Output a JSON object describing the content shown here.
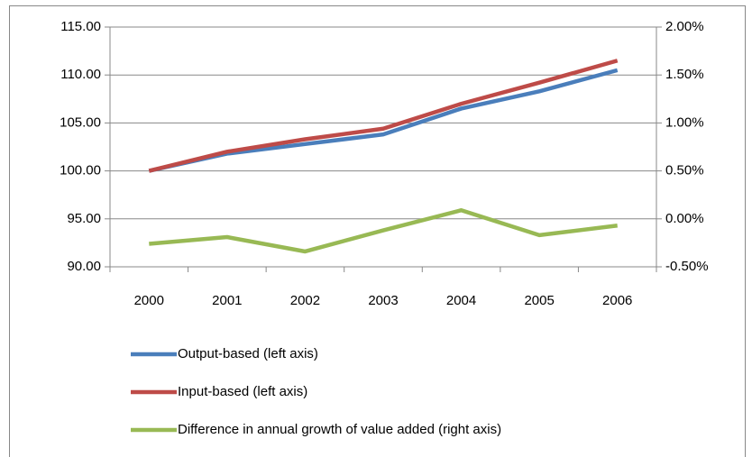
{
  "chart_data": {
    "type": "line",
    "categories": [
      "2000",
      "2001",
      "2002",
      "2003",
      "2004",
      "2005",
      "2006"
    ],
    "series": [
      {
        "name": "Output-based (left axis)",
        "color": "#4a7ebb",
        "values": [
          100,
          101.8,
          102.8,
          103.8,
          106.5,
          108.3,
          110.5
        ]
      },
      {
        "name": "Input-based (left axis)",
        "color": "#be4b48",
        "values": [
          100,
          102.0,
          103.3,
          104.4,
          107.0,
          109.2,
          111.5
        ]
      },
      {
        "name": "Difference in annual growth of value added (right axis)",
        "color": "#98b954",
        "axis": "y2",
        "values": [
          -0.26,
          -0.19,
          -0.34,
          -0.12,
          0.09,
          -0.17,
          -0.07
        ]
      }
    ],
    "ylim": [
      90,
      115
    ],
    "yticks": [
      {
        "value": 90,
        "label": "90.00"
      },
      {
        "value": 95,
        "label": "95.00"
      },
      {
        "value": 100,
        "label": "100.00"
      },
      {
        "value": 105,
        "label": "105.00"
      },
      {
        "value": 110,
        "label": "110.00"
      },
      {
        "value": 115,
        "label": "115.00"
      }
    ],
    "y2lim": [
      -0.5,
      2
    ],
    "y2ticks": [
      {
        "value": -0.5,
        "label": "-0.50%"
      },
      {
        "value": 0,
        "label": "0.00%"
      },
      {
        "value": 0.5,
        "label": "0.50%"
      },
      {
        "value": 1,
        "label": "1.00%"
      },
      {
        "value": 1.5,
        "label": "1.50%"
      },
      {
        "value": 2,
        "label": "2.00%"
      }
    ],
    "grid": true,
    "legend": "bottom"
  }
}
